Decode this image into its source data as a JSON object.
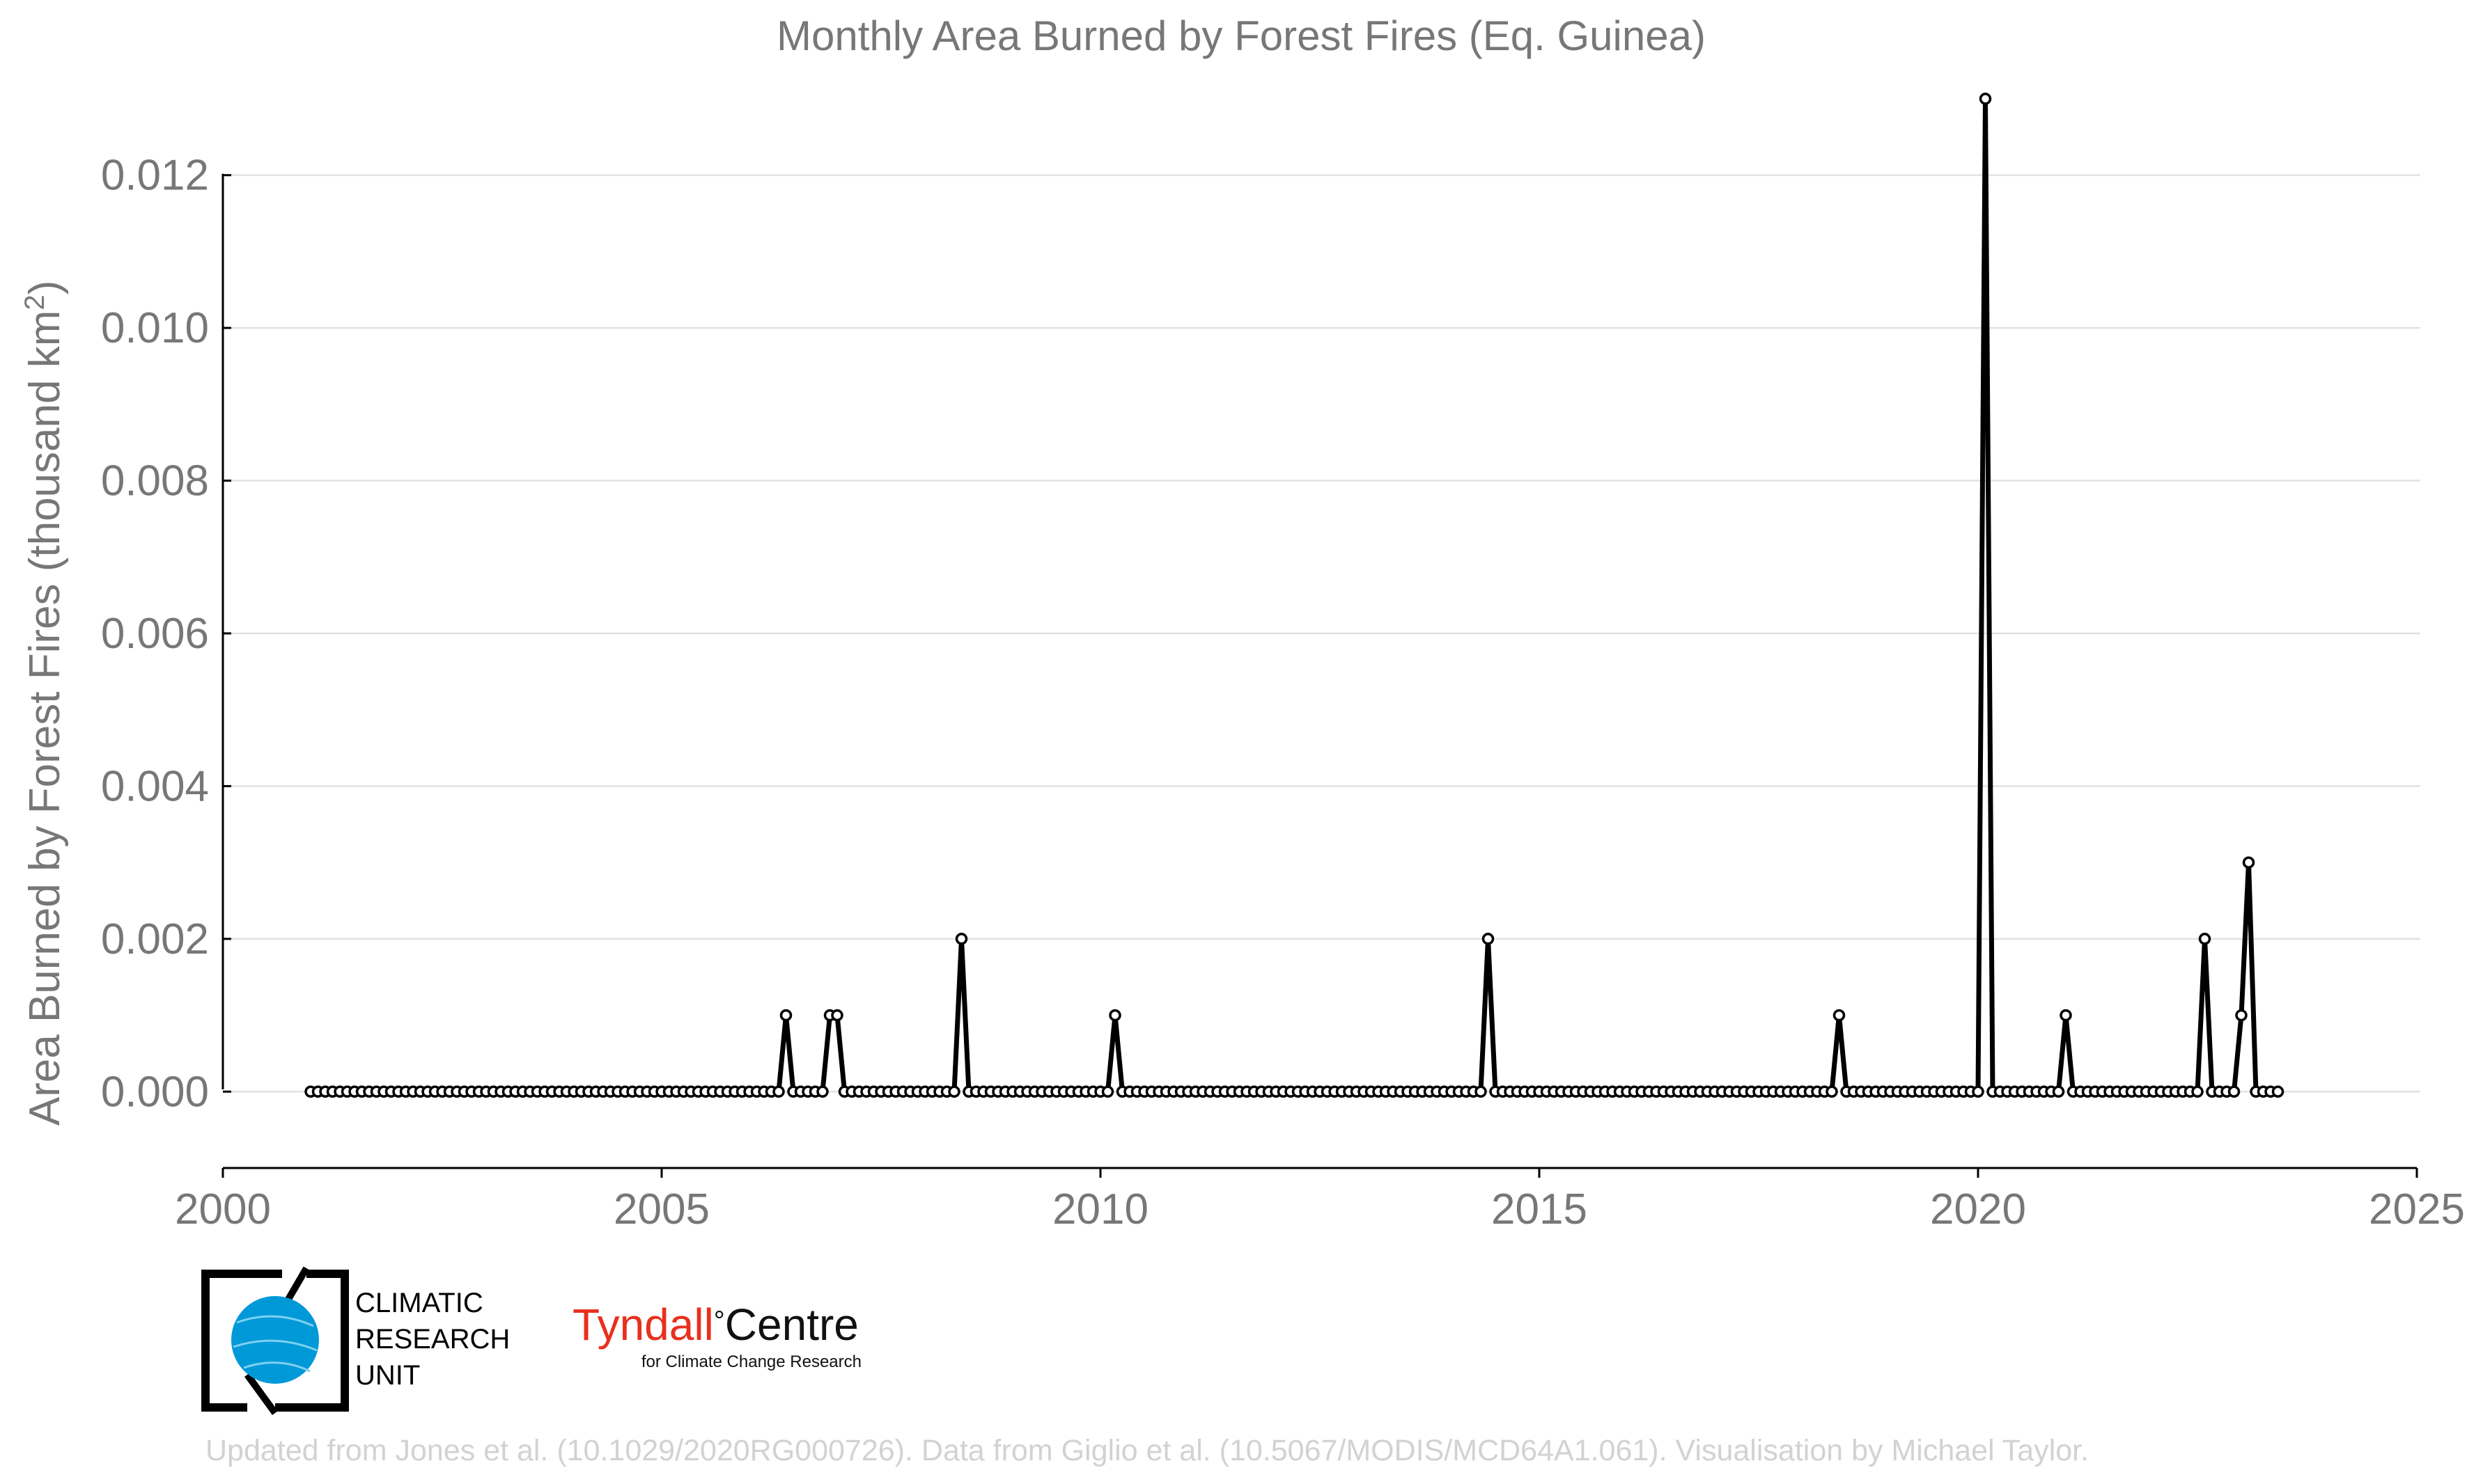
{
  "chart_data": {
    "type": "line",
    "title": "Monthly Area Burned by Forest Fires (Eq. Guinea)",
    "ylabel_main": "Area Burned by Forest Fires (thousand km",
    "ylabel_sup": "2",
    "ylabel_close": ")",
    "xlabel": "",
    "xlim": [
      2000,
      2025
    ],
    "ylim": [
      -0.001,
      0.0132
    ],
    "x_ticks": [
      2000,
      2005,
      2010,
      2015,
      2020,
      2025
    ],
    "x_tick_labels": [
      "2000",
      "2005",
      "2010",
      "2015",
      "2020",
      "2025"
    ],
    "y_ticks": [
      0,
      0.002,
      0.004,
      0.006,
      0.008,
      0.01,
      0.012
    ],
    "y_tick_labels": [
      "0.000",
      "0.002",
      "0.004",
      "0.006",
      "0.008",
      "0.010",
      "0.012"
    ],
    "grid": "horizontal",
    "legend": "none",
    "series": [
      {
        "start": "2001-01",
        "frequency": "monthly",
        "color": "#000000",
        "values": [
          0,
          0,
          0,
          0,
          0,
          0,
          0,
          0,
          0,
          0,
          0,
          0,
          0,
          0,
          0,
          0,
          0,
          0,
          0,
          0,
          0,
          0,
          0,
          0,
          0,
          0,
          0,
          0,
          0,
          0,
          0,
          0,
          0,
          0,
          0,
          0,
          0,
          0,
          0,
          0,
          0,
          0,
          0,
          0,
          0,
          0,
          0,
          0,
          0,
          0,
          0,
          0,
          0,
          0,
          0,
          0,
          0,
          0,
          0,
          0,
          0,
          0,
          0,
          0,
          0,
          0.001,
          0,
          0,
          0,
          0,
          0,
          0.001,
          0.001,
          0,
          0,
          0,
          0,
          0,
          0,
          0,
          0,
          0,
          0,
          0,
          0,
          0,
          0,
          0,
          0,
          0.002,
          0,
          0,
          0,
          0,
          0,
          0,
          0,
          0,
          0,
          0,
          0,
          0,
          0,
          0,
          0,
          0,
          0,
          0,
          0,
          0,
          0.001,
          0,
          0,
          0,
          0,
          0,
          0,
          0,
          0,
          0,
          0,
          0,
          0,
          0,
          0,
          0,
          0,
          0,
          0,
          0,
          0,
          0,
          0,
          0,
          0,
          0,
          0,
          0,
          0,
          0,
          0,
          0,
          0,
          0,
          0,
          0,
          0,
          0,
          0,
          0,
          0,
          0,
          0,
          0,
          0,
          0,
          0,
          0,
          0,
          0,
          0,
          0.002,
          0,
          0,
          0,
          0,
          0,
          0,
          0,
          0,
          0,
          0,
          0,
          0,
          0,
          0,
          0,
          0,
          0,
          0,
          0,
          0,
          0,
          0,
          0,
          0,
          0,
          0,
          0,
          0,
          0,
          0,
          0,
          0,
          0,
          0,
          0,
          0,
          0,
          0,
          0,
          0,
          0,
          0,
          0,
          0,
          0,
          0,
          0,
          0.001,
          0,
          0,
          0,
          0,
          0,
          0,
          0,
          0,
          0,
          0,
          0,
          0,
          0,
          0,
          0,
          0,
          0,
          0,
          0,
          0.013,
          0,
          0,
          0,
          0,
          0,
          0,
          0,
          0,
          0,
          0,
          0.001,
          0,
          0,
          0,
          0,
          0,
          0,
          0,
          0,
          0,
          0,
          0,
          0,
          0,
          0,
          0,
          0,
          0,
          0,
          0.002,
          0,
          0,
          0,
          0,
          0.001,
          0.003,
          0,
          0,
          0,
          0
        ]
      }
    ]
  },
  "branding": {
    "cru_lines": [
      "CLIMATIC",
      "RESEARCH",
      "UNIT"
    ],
    "tyndall_name": "Tyndall",
    "tyndall_degree": "°",
    "tyndall_centre": "Centre",
    "tyndall_sub": "for Climate Change Research",
    "cru_colors": {
      "globe": "#0099d8",
      "frame": "#000000"
    },
    "tyndall_color": "#e8301c"
  },
  "credit": "Updated from Jones et al. (10.1029/2020RG000726). Data from Giglio et al. (10.5067/MODIS/MCD64A1.061). Visualisation by Michael Taylor."
}
